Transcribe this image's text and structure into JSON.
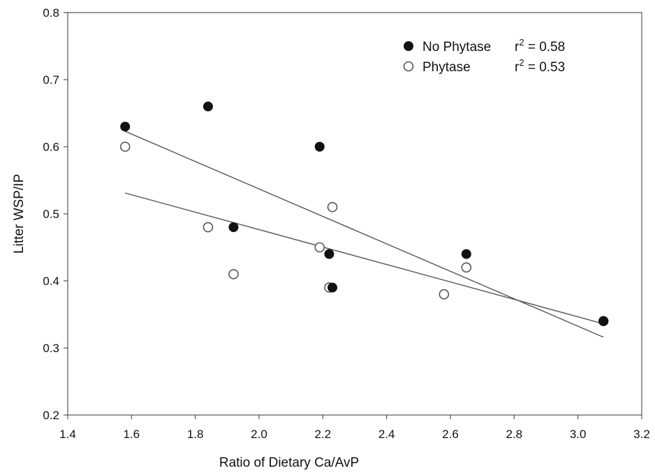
{
  "chart_data": {
    "type": "scatter",
    "title": "",
    "xlabel": "Ratio of Dietary Ca/AvP",
    "ylabel": "Litter WSP/IP",
    "xlim": [
      1.4,
      3.2
    ],
    "ylim": [
      0.2,
      0.8
    ],
    "xticks": [
      "1.4",
      "1.6",
      "1.8",
      "2.0",
      "2.2",
      "2.4",
      "2.6",
      "2.8",
      "3.0",
      "3.2"
    ],
    "yticks": [
      "0.2",
      "0.3",
      "0.4",
      "0.5",
      "0.6",
      "0.7",
      "0.8"
    ],
    "grid": false,
    "legend_position": "top-right",
    "series": [
      {
        "name": "No Phytase",
        "r2_label": "r",
        "r2_sup": "2",
        "r2_value": " = 0.58",
        "marker": "filled-circle",
        "color": "#111111",
        "points": [
          {
            "x": 1.58,
            "y": 0.63
          },
          {
            "x": 1.84,
            "y": 0.66
          },
          {
            "x": 1.92,
            "y": 0.48
          },
          {
            "x": 2.19,
            "y": 0.6
          },
          {
            "x": 2.22,
            "y": 0.44
          },
          {
            "x": 2.23,
            "y": 0.39
          },
          {
            "x": 2.65,
            "y": 0.44
          },
          {
            "x": 3.08,
            "y": 0.34
          }
        ],
        "fit_line": [
          {
            "x": 1.58,
            "y": 0.623
          },
          {
            "x": 3.08,
            "y": 0.316
          }
        ]
      },
      {
        "name": "Phytase",
        "r2_label": "r",
        "r2_sup": "2",
        "r2_value": " = 0.53",
        "marker": "open-circle",
        "color": "#111111",
        "points": [
          {
            "x": 1.58,
            "y": 0.6
          },
          {
            "x": 1.84,
            "y": 0.48
          },
          {
            "x": 1.92,
            "y": 0.41
          },
          {
            "x": 2.19,
            "y": 0.45
          },
          {
            "x": 2.22,
            "y": 0.39
          },
          {
            "x": 2.23,
            "y": 0.51
          },
          {
            "x": 2.58,
            "y": 0.38
          },
          {
            "x": 2.65,
            "y": 0.42
          },
          {
            "x": 3.08,
            "y": 0.34
          }
        ],
        "fit_line": [
          {
            "x": 1.58,
            "y": 0.531
          },
          {
            "x": 3.08,
            "y": 0.336
          }
        ]
      }
    ]
  }
}
